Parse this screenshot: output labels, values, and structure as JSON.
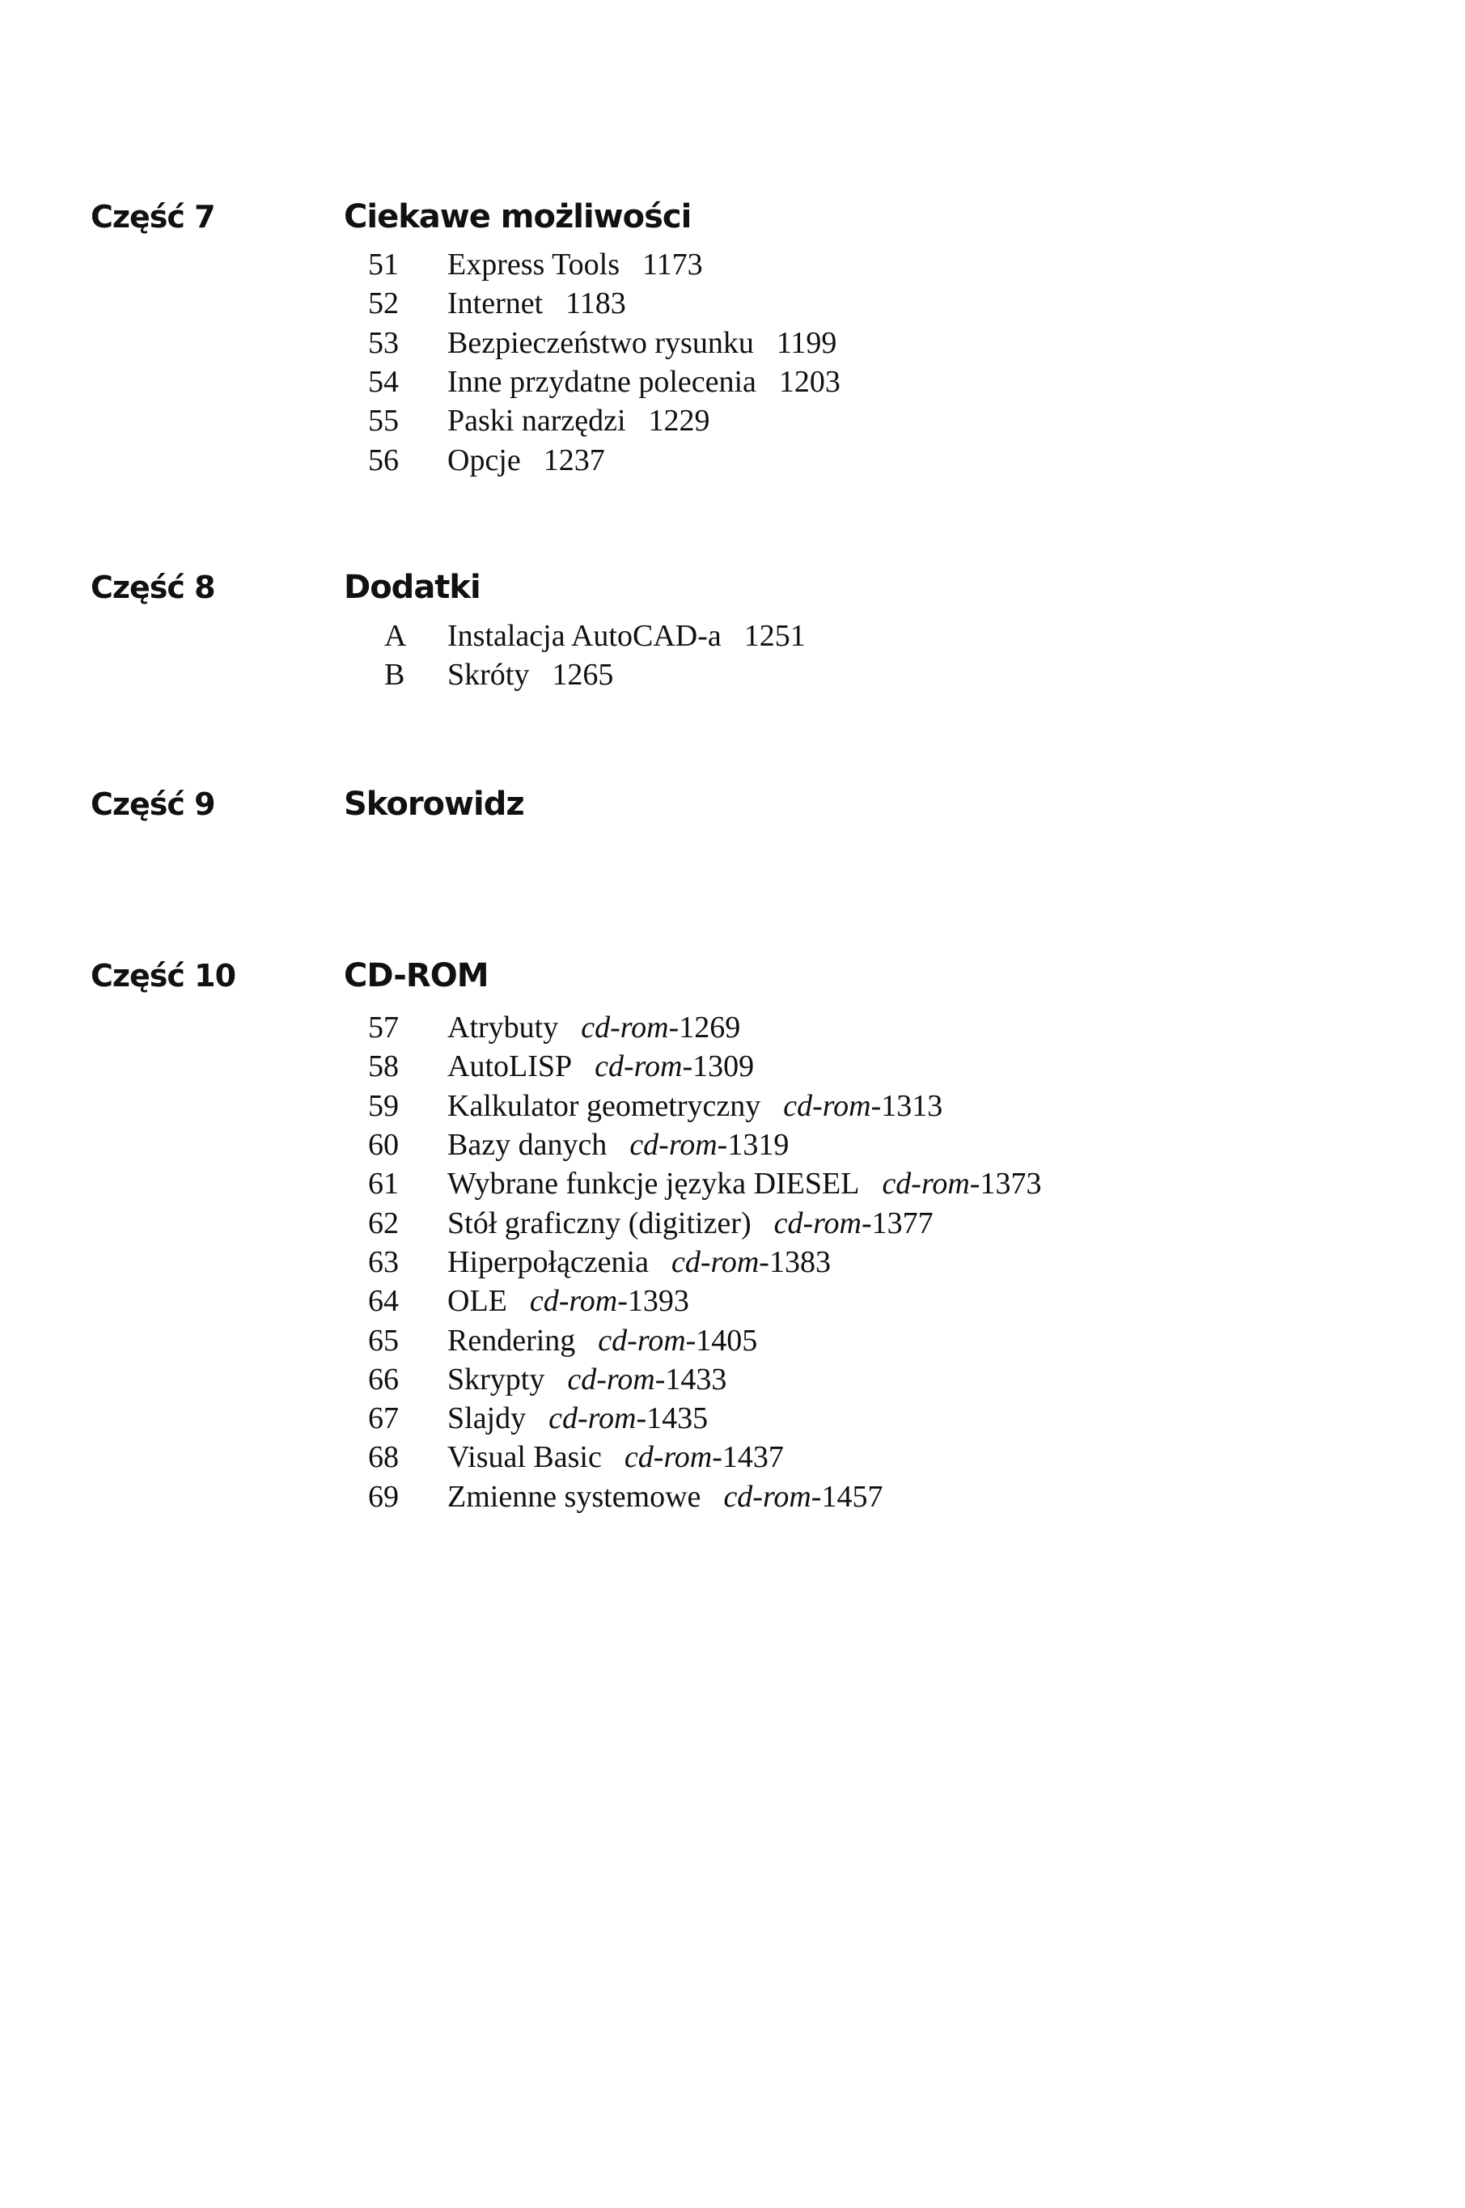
{
  "parts": [
    {
      "label": "Część 7",
      "title": "Ciekawe możliwości",
      "entries": [
        {
          "num": "51",
          "title": "Express Tools",
          "prefix": "",
          "page": "1173"
        },
        {
          "num": "52",
          "title": "Internet",
          "prefix": "",
          "page": "1183"
        },
        {
          "num": "53",
          "title": "Bezpieczeństwo rysunku",
          "prefix": "",
          "page": "1199"
        },
        {
          "num": "54",
          "title": "Inne przydatne polecenia",
          "prefix": "",
          "page": "1203"
        },
        {
          "num": "55",
          "title": "Paski narzędzi",
          "prefix": "",
          "page": "1229"
        },
        {
          "num": "56",
          "title": "Opcje",
          "prefix": "",
          "page": "1237"
        }
      ]
    },
    {
      "label": "Część 8",
      "title": "Dodatki",
      "entries": [
        {
          "num": "A",
          "title": "Instalacja AutoCAD-a",
          "prefix": "",
          "page": "1251"
        },
        {
          "num": "B",
          "title": "Skróty",
          "prefix": "",
          "page": "1265"
        }
      ]
    },
    {
      "label": "Część 9",
      "title": "Skorowidz",
      "entries": []
    },
    {
      "label": "Część 10",
      "title": "CD-ROM",
      "entries": [
        {
          "num": "57",
          "title": "Atrybuty",
          "prefix": "cd-rom-",
          "page": "1269"
        },
        {
          "num": "58",
          "title": "AutoLISP",
          "prefix": "cd-rom-",
          "page": "1309"
        },
        {
          "num": "59",
          "title": "Kalkulator geometryczny",
          "prefix": "cd-rom-",
          "page": "1313"
        },
        {
          "num": "60",
          "title": "Bazy danych",
          "prefix": "cd-rom-",
          "page": "1319"
        },
        {
          "num": "61",
          "title": "Wybrane funkcje języka DIESEL",
          "prefix": "cd-rom-",
          "page": "1373"
        },
        {
          "num": "62",
          "title": "Stół graficzny (digitizer)",
          "prefix": "cd-rom-",
          "page": "1377"
        },
        {
          "num": "63",
          "title": "Hiperpołączenia",
          "prefix": "cd-rom-",
          "page": "1383"
        },
        {
          "num": "64",
          "title": "OLE",
          "prefix": "cd-rom-",
          "page": "1393"
        },
        {
          "num": "65",
          "title": "Rendering",
          "prefix": "cd-rom-",
          "page": "1405"
        },
        {
          "num": "66",
          "title": "Skrypty",
          "prefix": "cd-rom-",
          "page": "1433"
        },
        {
          "num": "67",
          "title": "Slajdy",
          "prefix": "cd-rom-",
          "page": "1435"
        },
        {
          "num": "68",
          "title": "Visual Basic",
          "prefix": "cd-rom-",
          "page": "1437"
        },
        {
          "num": "69",
          "title": "Zmienne systemowe",
          "prefix": "cd-rom-",
          "page": "1457"
        }
      ]
    }
  ]
}
